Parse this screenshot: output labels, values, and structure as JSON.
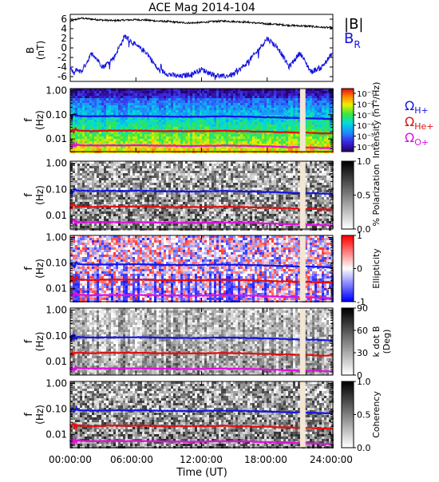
{
  "title": "ACE Mag 2014-104",
  "x_axis": {
    "label": "Time (UT)",
    "ticks": [
      "00:00:00",
      "06:00:00",
      "12:00:00",
      "18:00:00",
      "24:00:00"
    ]
  },
  "colors": {
    "b_total": "#000000",
    "b_r": "#1010dd",
    "omega_h": "#1414e6",
    "omega_he": "#e01010",
    "omega_o": "#e010e0",
    "gap": "#f3e6d2"
  },
  "annotations": {
    "b_total_label": "|B|",
    "b_r_label": "B",
    "b_r_sub": "R",
    "omega_h_label": "Ω",
    "omega_h_sub": "H+",
    "omega_he_label": "Ω",
    "omega_he_sub": "He+",
    "omega_o_label": "Ω",
    "omega_o_sub": "O+"
  },
  "chart_data": [
    {
      "type": "line",
      "panel": "magnetic-field",
      "ylabel": "B",
      "yunit": "(nT)",
      "ylim": [
        -7,
        7
      ],
      "yticks": [
        "6",
        "4",
        "2",
        "0",
        "-2",
        "-4",
        "-6"
      ],
      "x_hours": [
        0,
        0.3,
        0.6,
        1,
        2,
        3,
        4,
        5,
        6,
        7,
        8,
        9,
        10,
        11,
        12,
        13,
        14,
        15,
        16,
        17,
        18,
        19,
        20,
        21,
        22,
        23,
        24
      ],
      "series": [
        {
          "name": "|B|",
          "values": [
            5.5,
            5.8,
            6.0,
            6.2,
            6.0,
            5.8,
            5.7,
            5.8,
            5.9,
            5.8,
            5.6,
            5.5,
            5.3,
            5.2,
            5.3,
            5.5,
            5.6,
            5.5,
            5.4,
            5.2,
            5.0,
            4.9,
            4.7,
            4.6,
            4.5,
            4.3,
            4.2
          ]
        },
        {
          "name": "B_R",
          "values": [
            -4.0,
            -5.5,
            -4.5,
            -5.0,
            -1.0,
            -4.0,
            -2.0,
            2.5,
            0.5,
            -1.0,
            -4.5,
            -5.5,
            -6.0,
            -5.5,
            -4.5,
            -5.5,
            -6.0,
            -5.5,
            -3.5,
            -1.0,
            2.0,
            0.0,
            -4.0,
            -1.0,
            -5.0,
            -4.0,
            -1.0
          ]
        }
      ]
    },
    {
      "type": "heatmap",
      "panel": "intensity",
      "ylabel": "f",
      "yunit": "(Hz)",
      "yscale": "log",
      "ylim": [
        0.003,
        1.2
      ],
      "yticks": [
        "1.00",
        "0.10",
        "0.01"
      ],
      "colorbar_label": "Intensity (nT²/Hz)",
      "colorbar_ticks": [
        "10⁻¹",
        "10⁻²",
        "10⁻³",
        "10⁻⁴",
        "10⁻⁵",
        "10⁻⁶"
      ],
      "colorbar_range": [
        -6.5,
        -0.5
      ]
    },
    {
      "type": "heatmap",
      "panel": "polarization",
      "ylabel": "f",
      "yunit": "(Hz)",
      "yscale": "log",
      "ylim": [
        0.003,
        1.2
      ],
      "yticks": [
        "1.00",
        "0.10",
        "0.01"
      ],
      "colorbar_label": "% Polarization",
      "colorbar_ticks": [
        "1.0",
        "0.5",
        "0.0"
      ],
      "colorbar_range": [
        0,
        1
      ]
    },
    {
      "type": "heatmap",
      "panel": "ellipticity",
      "ylabel": "f",
      "yunit": "(Hz)",
      "yscale": "log",
      "ylim": [
        0.003,
        1.2
      ],
      "yticks": [
        "1.00",
        "0.10",
        "0.01"
      ],
      "colorbar_label": "Ellipticity",
      "colorbar_ticks": [
        "1",
        "0",
        "-1"
      ],
      "colorbar_range": [
        -1,
        1
      ]
    },
    {
      "type": "heatmap",
      "panel": "k-dot-b",
      "ylabel": "f",
      "yunit": "(Hz)",
      "yscale": "log",
      "ylim": [
        0.003,
        1.2
      ],
      "yticks": [
        "1.00",
        "0.10",
        "0.01"
      ],
      "colorbar_label": "k dot B",
      "colorbar_label2": "(Deg)",
      "colorbar_ticks": [
        "90",
        "60",
        "30",
        "0"
      ],
      "colorbar_range": [
        0,
        90
      ]
    },
    {
      "type": "heatmap",
      "panel": "coherency",
      "ylabel": "f",
      "yunit": "(Hz)",
      "yscale": "log",
      "ylim": [
        0.003,
        1.2
      ],
      "yticks": [
        "1.00",
        "0.10",
        "0.01"
      ],
      "colorbar_label": "Coherency",
      "colorbar_ticks": [
        "1.0",
        "0.5",
        "0.0"
      ],
      "colorbar_range": [
        0,
        1
      ]
    }
  ],
  "gyrofrequencies": {
    "x_hours": [
      0,
      0.5,
      1,
      2,
      3,
      4,
      5,
      6,
      7,
      8,
      9,
      10,
      11,
      12,
      13,
      14,
      15,
      16,
      17,
      18,
      19,
      20,
      21,
      22,
      23,
      24
    ],
    "omega_h_hz": [
      0.085,
      0.092,
      0.088,
      0.086,
      0.087,
      0.088,
      0.087,
      0.088,
      0.087,
      0.085,
      0.084,
      0.083,
      0.082,
      0.083,
      0.085,
      0.086,
      0.085,
      0.083,
      0.081,
      0.079,
      0.077,
      0.074,
      0.073,
      0.071,
      0.069,
      0.066
    ],
    "omega_he_hz": [
      0.021,
      0.023,
      0.022,
      0.021,
      0.022,
      0.022,
      0.022,
      0.022,
      0.022,
      0.021,
      0.021,
      0.021,
      0.021,
      0.021,
      0.021,
      0.022,
      0.021,
      0.021,
      0.02,
      0.02,
      0.019,
      0.019,
      0.018,
      0.018,
      0.017,
      0.017
    ],
    "omega_o_hz": [
      0.0053,
      0.0058,
      0.0055,
      0.0054,
      0.0054,
      0.0055,
      0.0054,
      0.0055,
      0.0054,
      0.0053,
      0.0053,
      0.0052,
      0.0051,
      0.0052,
      0.0053,
      0.0054,
      0.0053,
      0.0052,
      0.0051,
      0.0049,
      0.0048,
      0.0046,
      0.0046,
      0.0044,
      0.0043,
      0.0041
    ],
    "data_gap_hours": [
      21.0,
      21.5
    ]
  }
}
